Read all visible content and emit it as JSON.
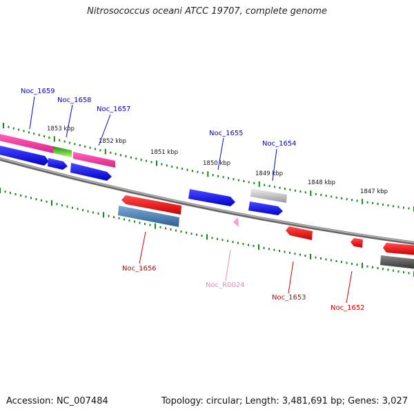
{
  "title": "Nitrosococcus oceani ATCC 19707, complete genome",
  "accession_label": "Accession: NC_007484",
  "stats_label": "Topology: circular; Length: 3,481,691 bp; Genes: 3,027",
  "kbp_labels": [
    "1853 kbp",
    "1852 kbp",
    "1851 kbp",
    "1850 kbp",
    "1849 kbp",
    "1848 kbp",
    "1847 kbp"
  ],
  "genes": [
    {
      "id": "Noc_1659",
      "color": "#0000cc"
    },
    {
      "id": "Noc_1658",
      "color": "#0000cc"
    },
    {
      "id": "Noc_1657",
      "color": "#0000cc"
    },
    {
      "id": "Noc_1655",
      "color": "#0000cc"
    },
    {
      "id": "Noc_1654",
      "color": "#0000cc"
    },
    {
      "id": "Noc_1656",
      "color": "#cc0000"
    },
    {
      "id": "Noc_R0024",
      "color": "#ee88bb"
    },
    {
      "id": "Noc_1653",
      "color": "#cc0000"
    },
    {
      "id": "Noc_1652",
      "color": "#cc0000"
    }
  ],
  "colors": {
    "backbone": "#888888",
    "tick": "#118811",
    "forward_cds": "#1a1aee",
    "reverse_cds": "#ee1111",
    "pink": "#ee3399",
    "green": "#55cc22",
    "gray": "#bbbbbb",
    "steel": "#4a7fb0",
    "dark": "#555555"
  }
}
